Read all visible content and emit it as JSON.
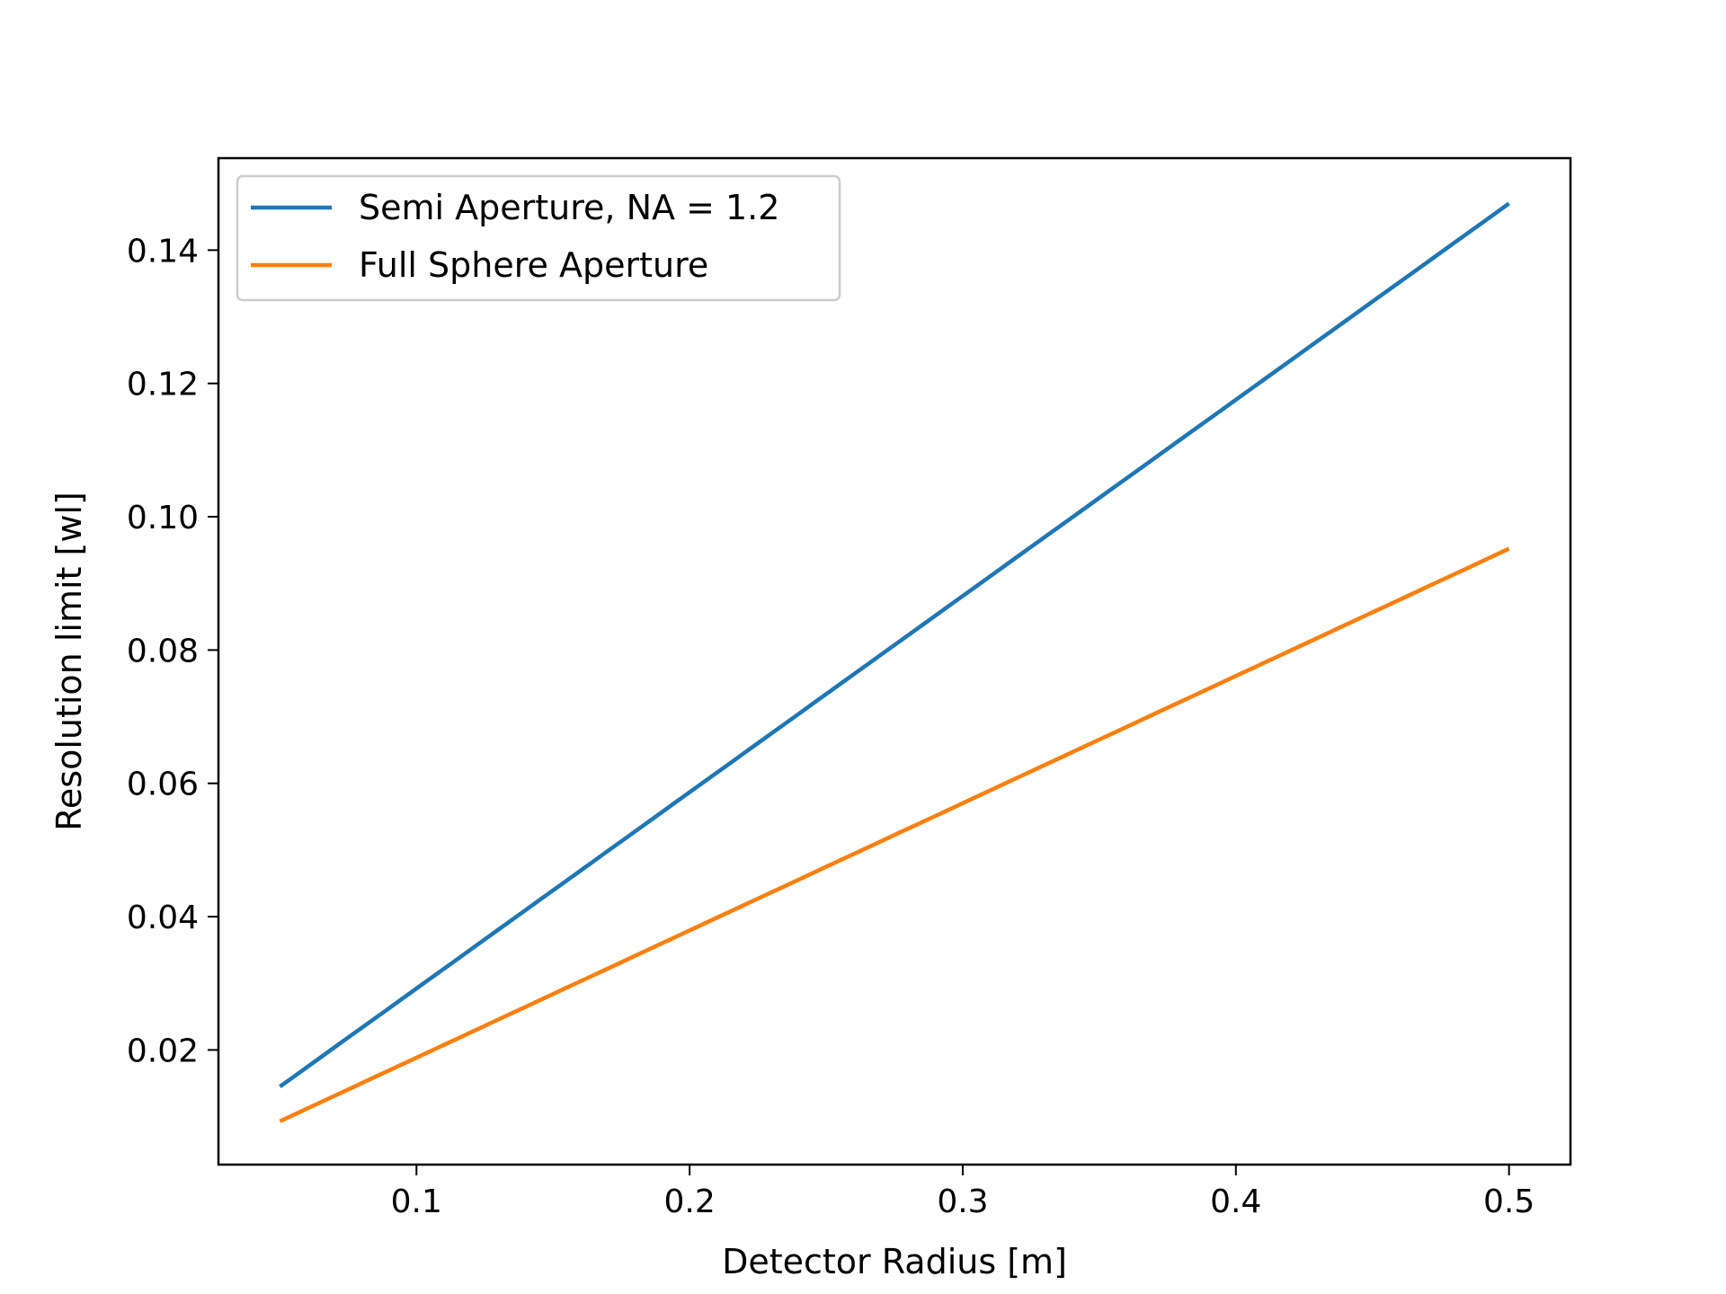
{
  "chart_data": {
    "type": "line",
    "title": "",
    "xlabel": "Detector Radius [m]",
    "ylabel": "Resolution limit [wl]",
    "xlim": [
      0.0275,
      0.5225
    ],
    "ylim": [
      0.0028,
      0.1538
    ],
    "xticks": [
      0.1,
      0.2,
      0.3,
      0.4,
      0.5
    ],
    "xtick_labels": [
      "0.1",
      "0.2",
      "0.3",
      "0.4",
      "0.5"
    ],
    "yticks": [
      0.02,
      0.04,
      0.06,
      0.08,
      0.1,
      0.12,
      0.14
    ],
    "ytick_labels": [
      "0.02",
      "0.04",
      "0.06",
      "0.08",
      "0.10",
      "0.12",
      "0.14"
    ],
    "grid": false,
    "legend_position": "upper-left",
    "x_range": [
      0.05,
      0.5
    ],
    "series": [
      {
        "name": "Semi Aperture, NA = 1.2",
        "color": "#1f77b4",
        "y_start": 0.0145,
        "y_end": 0.147
      },
      {
        "name": "Full Sphere Aperture",
        "color": "#ff7f0e",
        "y_start": 0.0093,
        "y_end": 0.0952
      }
    ]
  }
}
